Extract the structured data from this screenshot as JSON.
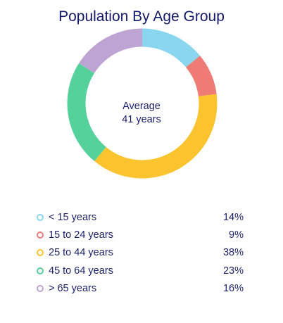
{
  "chart_data": {
    "type": "pie",
    "variant": "donut",
    "title": "Population By Age Group",
    "center_label_line1": "Average",
    "center_label_line2": "41 years",
    "legend_placement": "bottom",
    "series": [
      {
        "name": "< 15 years",
        "value": 14,
        "value_label": "14%",
        "color": "#8ad6ef"
      },
      {
        "name": "15 to 24 years",
        "value": 9,
        "value_label": "9%",
        "color": "#ee7b76"
      },
      {
        "name": "25 to 44 years",
        "value": 38,
        "value_label": "38%",
        "color": "#fbc42f"
      },
      {
        "name": "45 to 64 years",
        "value": 23,
        "value_label": "23%",
        "color": "#55d19c"
      },
      {
        "name": "> 65 years",
        "value": 16,
        "value_label": "16%",
        "color": "#bea4d2"
      }
    ]
  }
}
